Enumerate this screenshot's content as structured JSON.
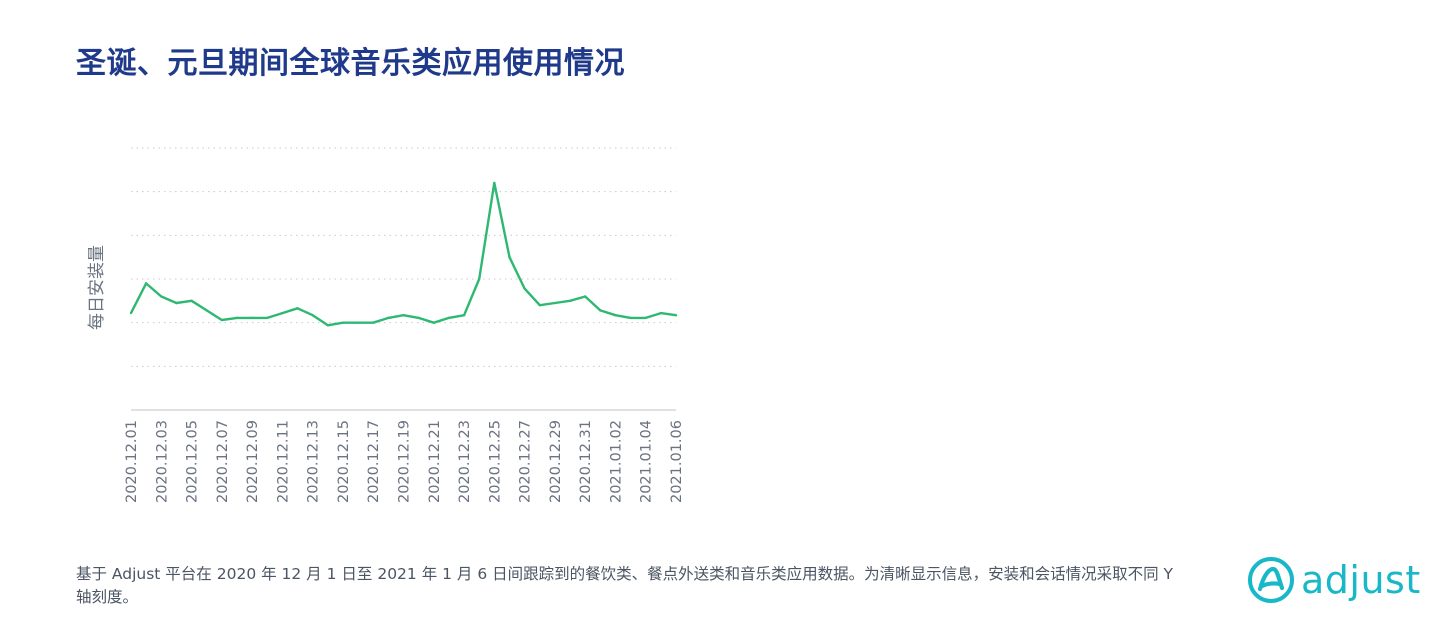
{
  "title": "圣诞、元旦期间全球音乐类应用使用情况",
  "footnote": "基于 Adjust 平台在 2020 年 12 月 1 日至 2021 年 1 月 6 日间跟踪到的餐饮类、餐点外送类和音乐类应用数据。为清晰显示信息，安装和会话情况采取不同 Y 轴刻度。",
  "logo": {
    "text": "adjust",
    "icon": "adjust-logo-icon",
    "color": "#18b8c8"
  },
  "chart_data": {
    "type": "line",
    "ylabel": "每日安装量",
    "xlabel": "",
    "grid": true,
    "line_color": "#2eb872",
    "x": [
      "2020.12.01",
      "2020.12.02",
      "2020.12.03",
      "2020.12.04",
      "2020.12.05",
      "2020.12.06",
      "2020.12.07",
      "2020.12.08",
      "2020.12.09",
      "2020.12.10",
      "2020.12.11",
      "2020.12.12",
      "2020.12.13",
      "2020.12.14",
      "2020.12.15",
      "2020.12.16",
      "2020.12.17",
      "2020.12.18",
      "2020.12.19",
      "2020.12.20",
      "2020.12.21",
      "2020.12.22",
      "2020.12.23",
      "2020.12.24",
      "2020.12.25",
      "2020.12.26",
      "2020.12.27",
      "2020.12.28",
      "2020.12.29",
      "2020.12.30",
      "2020.12.31",
      "2021.01.01",
      "2021.01.02",
      "2021.01.03",
      "2021.01.04",
      "2021.01.05",
      "2021.01.06"
    ],
    "tick_labels": [
      "2020.12.01",
      "2020.12.03",
      "2020.12.05",
      "2020.12.07",
      "2020.12.09",
      "2020.12.11",
      "2020.12.13",
      "2020.12.15",
      "2020.12.17",
      "2020.12.19",
      "2020.12.21",
      "2020.12.23",
      "2020.12.25",
      "2020.12.27",
      "2020.12.29",
      "2020.12.31",
      "2021.01.02",
      "2021.01.04",
      "2021.01.06"
    ],
    "values": [
      0.22,
      0.9,
      0.6,
      0.45,
      0.5,
      0.28,
      0.06,
      0.11,
      0.11,
      0.11,
      0.22,
      0.33,
      0.17,
      -0.06,
      0.0,
      0.0,
      0.0,
      0.11,
      0.17,
      0.11,
      0.0,
      0.11,
      0.17,
      1.0,
      3.2,
      1.5,
      0.78,
      0.4,
      0.45,
      0.5,
      0.6,
      0.28,
      0.17,
      0.11,
      0.11,
      0.22,
      0.17
    ],
    "ylim": [
      -2,
      4
    ],
    "gridlines": [
      -1,
      0,
      1,
      2,
      3,
      4
    ]
  }
}
